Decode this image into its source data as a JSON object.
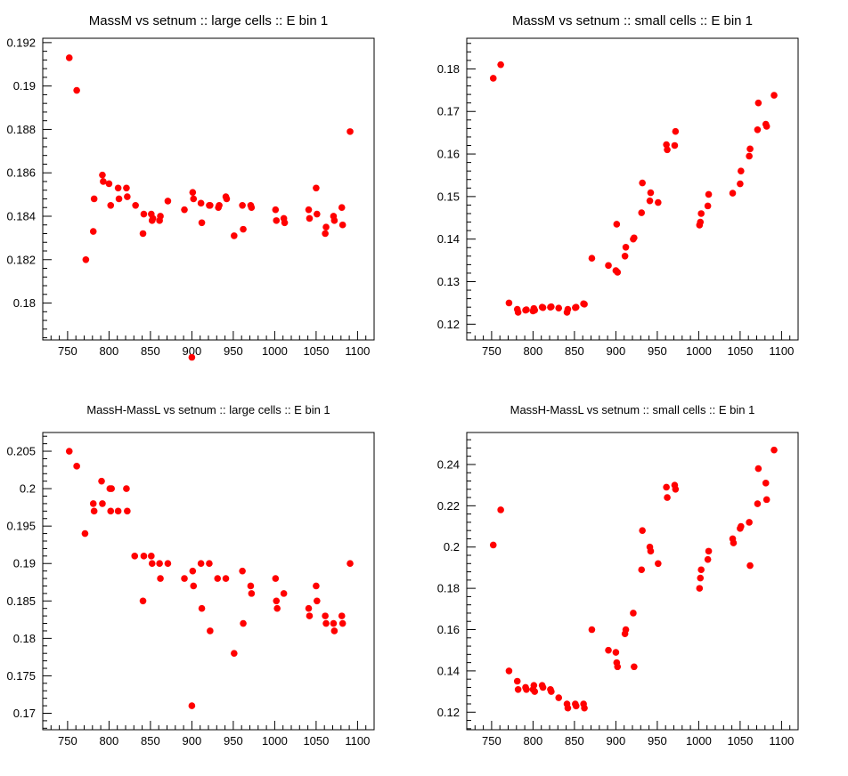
{
  "colors": {
    "marker": "#ff0000",
    "frame": "#000000",
    "background": "#ffffff"
  },
  "chart_data": [
    {
      "type": "scatter",
      "title": "MassM vs setnum :: large cells :: E bin 1",
      "xlabel": "",
      "ylabel": "",
      "xlim": [
        720,
        1120
      ],
      "ylim": [
        0.1783,
        0.1922
      ],
      "xticks": [
        750,
        800,
        850,
        900,
        950,
        1000,
        1050,
        1100
      ],
      "yticks": [
        0.18,
        0.182,
        0.184,
        0.186,
        0.188,
        0.19,
        0.192
      ],
      "ytick_labels": [
        "0.18",
        "0.182",
        "0.184",
        "0.186",
        "0.188",
        "0.19",
        "0.192"
      ],
      "points": [
        [
          752,
          0.1913
        ],
        [
          761,
          0.1898
        ],
        [
          772,
          0.182
        ],
        [
          781,
          0.1833
        ],
        [
          782,
          0.1848
        ],
        [
          792,
          0.1859
        ],
        [
          793,
          0.1856
        ],
        [
          800,
          0.1855
        ],
        [
          802,
          0.1845
        ],
        [
          811,
          0.1853
        ],
        [
          812,
          0.1848
        ],
        [
          821,
          0.1853
        ],
        [
          822,
          0.1849
        ],
        [
          832,
          0.1845
        ],
        [
          841,
          0.1832
        ],
        [
          842,
          0.1841
        ],
        [
          851,
          0.1841
        ],
        [
          852,
          0.1838
        ],
        [
          853,
          0.1839
        ],
        [
          861,
          0.1838
        ],
        [
          862,
          0.184
        ],
        [
          871,
          0.1847
        ],
        [
          891,
          0.1843
        ],
        [
          900,
          0.1775
        ],
        [
          901,
          0.1851
        ],
        [
          902,
          0.1848
        ],
        [
          911,
          0.1846
        ],
        [
          912,
          0.1837
        ],
        [
          921,
          0.1845
        ],
        [
          922,
          0.1845
        ],
        [
          932,
          0.1844
        ],
        [
          933,
          0.1845
        ],
        [
          941,
          0.1849
        ],
        [
          942,
          0.1848
        ],
        [
          951,
          0.1831
        ],
        [
          961,
          0.1845
        ],
        [
          962,
          0.1834
        ],
        [
          971,
          0.1845
        ],
        [
          972,
          0.1844
        ],
        [
          1001,
          0.1843
        ],
        [
          1002,
          0.1838
        ],
        [
          1011,
          0.1839
        ],
        [
          1012,
          0.1837
        ],
        [
          1041,
          0.1843
        ],
        [
          1042,
          0.1839
        ],
        [
          1050,
          0.1853
        ],
        [
          1051,
          0.1841
        ],
        [
          1061,
          0.1832
        ],
        [
          1062,
          0.1835
        ],
        [
          1071,
          0.184
        ],
        [
          1072,
          0.1838
        ],
        [
          1081,
          0.1844
        ],
        [
          1082,
          0.1836
        ],
        [
          1091,
          0.1879
        ]
      ]
    },
    {
      "type": "scatter",
      "title": "MassM vs setnum :: small cells :: E bin 1",
      "xlabel": "",
      "ylabel": "",
      "xlim": [
        720,
        1120
      ],
      "ylim": [
        0.1163,
        0.1872
      ],
      "xticks": [
        750,
        800,
        850,
        900,
        950,
        1000,
        1050,
        1100
      ],
      "yticks": [
        0.12,
        0.13,
        0.14,
        0.15,
        0.16,
        0.17,
        0.18
      ],
      "ytick_labels": [
        "0.12",
        "0.13",
        "0.14",
        "0.15",
        "0.16",
        "0.17",
        "0.18"
      ],
      "points": [
        [
          752,
          0.1778
        ],
        [
          761,
          0.181
        ],
        [
          771,
          0.125
        ],
        [
          781,
          0.1235
        ],
        [
          782,
          0.1228
        ],
        [
          791,
          0.1233
        ],
        [
          792,
          0.1234
        ],
        [
          800,
          0.1231
        ],
        [
          801,
          0.1237
        ],
        [
          802,
          0.1233
        ],
        [
          811,
          0.124
        ],
        [
          812,
          0.1239
        ],
        [
          821,
          0.124
        ],
        [
          822,
          0.1241
        ],
        [
          831,
          0.1238
        ],
        [
          841,
          0.1228
        ],
        [
          842,
          0.1235
        ],
        [
          851,
          0.1239
        ],
        [
          852,
          0.124
        ],
        [
          861,
          0.1248
        ],
        [
          862,
          0.1247
        ],
        [
          871,
          0.1355
        ],
        [
          891,
          0.1338
        ],
        [
          900,
          0.1326
        ],
        [
          901,
          0.1435
        ],
        [
          902,
          0.1322
        ],
        [
          911,
          0.136
        ],
        [
          912,
          0.1381
        ],
        [
          921,
          0.14
        ],
        [
          922,
          0.1403
        ],
        [
          931,
          0.1462
        ],
        [
          932,
          0.1532
        ],
        [
          941,
          0.149
        ],
        [
          942,
          0.1509
        ],
        [
          951,
          0.1486
        ],
        [
          961,
          0.1622
        ],
        [
          962,
          0.161
        ],
        [
          971,
          0.162
        ],
        [
          972,
          0.1653
        ],
        [
          1001,
          0.1433
        ],
        [
          1002,
          0.144
        ],
        [
          1003,
          0.146
        ],
        [
          1011,
          0.1478
        ],
        [
          1012,
          0.1505
        ],
        [
          1041,
          0.1508
        ],
        [
          1050,
          0.153
        ],
        [
          1051,
          0.156
        ],
        [
          1061,
          0.1595
        ],
        [
          1062,
          0.1612
        ],
        [
          1071,
          0.1657
        ],
        [
          1072,
          0.172
        ],
        [
          1081,
          0.167
        ],
        [
          1082,
          0.1665
        ],
        [
          1091,
          0.1738
        ]
      ]
    },
    {
      "type": "scatter",
      "title": "MassH-MassL vs setnum :: large cells :: E bin 1",
      "xlabel": "",
      "ylabel": "",
      "xlim": [
        720,
        1120
      ],
      "ylim": [
        0.1678,
        0.2075
      ],
      "xticks": [
        750,
        800,
        850,
        900,
        950,
        1000,
        1050,
        1100
      ],
      "yticks": [
        0.17,
        0.175,
        0.18,
        0.185,
        0.19,
        0.195,
        0.2,
        0.205
      ],
      "ytick_labels": [
        "0.17",
        "0.175",
        "0.18",
        "0.185",
        "0.19",
        "0.195",
        "0.2",
        "0.205"
      ],
      "points": [
        [
          752,
          0.205
        ],
        [
          761,
          0.203
        ],
        [
          771,
          0.194
        ],
        [
          781,
          0.198
        ],
        [
          782,
          0.197
        ],
        [
          791,
          0.201
        ],
        [
          792,
          0.198
        ],
        [
          801,
          0.2
        ],
        [
          802,
          0.197
        ],
        [
          803,
          0.2
        ],
        [
          811,
          0.197
        ],
        [
          821,
          0.2
        ],
        [
          822,
          0.197
        ],
        [
          831,
          0.191
        ],
        [
          841,
          0.185
        ],
        [
          842,
          0.191
        ],
        [
          851,
          0.191
        ],
        [
          852,
          0.19
        ],
        [
          861,
          0.19
        ],
        [
          862,
          0.188
        ],
        [
          871,
          0.19
        ],
        [
          891,
          0.188
        ],
        [
          900,
          0.171
        ],
        [
          901,
          0.189
        ],
        [
          902,
          0.187
        ],
        [
          911,
          0.19
        ],
        [
          912,
          0.184
        ],
        [
          921,
          0.19
        ],
        [
          922,
          0.181
        ],
        [
          931,
          0.188
        ],
        [
          941,
          0.188
        ],
        [
          951,
          0.178
        ],
        [
          961,
          0.189
        ],
        [
          962,
          0.182
        ],
        [
          971,
          0.187
        ],
        [
          972,
          0.186
        ],
        [
          1001,
          0.188
        ],
        [
          1002,
          0.185
        ],
        [
          1003,
          0.184
        ],
        [
          1011,
          0.186
        ],
        [
          1041,
          0.184
        ],
        [
          1042,
          0.183
        ],
        [
          1050,
          0.187
        ],
        [
          1051,
          0.185
        ],
        [
          1061,
          0.183
        ],
        [
          1062,
          0.182
        ],
        [
          1071,
          0.182
        ],
        [
          1072,
          0.181
        ],
        [
          1081,
          0.183
        ],
        [
          1082,
          0.182
        ],
        [
          1091,
          0.19
        ]
      ]
    },
    {
      "type": "scatter",
      "title": "MassH-MassL vs setnum :: small cells :: E bin 1",
      "xlabel": "",
      "ylabel": "",
      "xlim": [
        720,
        1120
      ],
      "ylim": [
        0.1115,
        0.2555
      ],
      "xticks": [
        750,
        800,
        850,
        900,
        950,
        1000,
        1050,
        1100
      ],
      "yticks": [
        0.12,
        0.14,
        0.16,
        0.18,
        0.2,
        0.22,
        0.24
      ],
      "ytick_labels": [
        "0.12",
        "0.14",
        "0.16",
        "0.18",
        "0.2",
        "0.22",
        "0.24"
      ],
      "points": [
        [
          752,
          0.201
        ],
        [
          761,
          0.218
        ],
        [
          771,
          0.14
        ],
        [
          781,
          0.135
        ],
        [
          782,
          0.131
        ],
        [
          791,
          0.132
        ],
        [
          792,
          0.131
        ],
        [
          800,
          0.131
        ],
        [
          801,
          0.133
        ],
        [
          802,
          0.13
        ],
        [
          811,
          0.133
        ],
        [
          812,
          0.132
        ],
        [
          821,
          0.131
        ],
        [
          822,
          0.13
        ],
        [
          831,
          0.127
        ],
        [
          841,
          0.124
        ],
        [
          842,
          0.122
        ],
        [
          851,
          0.124
        ],
        [
          852,
          0.123
        ],
        [
          861,
          0.124
        ],
        [
          862,
          0.122
        ],
        [
          871,
          0.16
        ],
        [
          891,
          0.15
        ],
        [
          900,
          0.149
        ],
        [
          901,
          0.144
        ],
        [
          902,
          0.142
        ],
        [
          911,
          0.158
        ],
        [
          912,
          0.16
        ],
        [
          921,
          0.168
        ],
        [
          922,
          0.142
        ],
        [
          931,
          0.189
        ],
        [
          932,
          0.208
        ],
        [
          941,
          0.2
        ],
        [
          942,
          0.198
        ],
        [
          951,
          0.192
        ],
        [
          961,
          0.229
        ],
        [
          962,
          0.224
        ],
        [
          971,
          0.23
        ],
        [
          972,
          0.228
        ],
        [
          1001,
          0.18
        ],
        [
          1002,
          0.185
        ],
        [
          1003,
          0.189
        ],
        [
          1011,
          0.194
        ],
        [
          1012,
          0.198
        ],
        [
          1041,
          0.204
        ],
        [
          1042,
          0.202
        ],
        [
          1050,
          0.209
        ],
        [
          1051,
          0.21
        ],
        [
          1061,
          0.212
        ],
        [
          1062,
          0.191
        ],
        [
          1071,
          0.221
        ],
        [
          1072,
          0.238
        ],
        [
          1081,
          0.231
        ],
        [
          1082,
          0.223
        ],
        [
          1091,
          0.247
        ]
      ]
    }
  ]
}
